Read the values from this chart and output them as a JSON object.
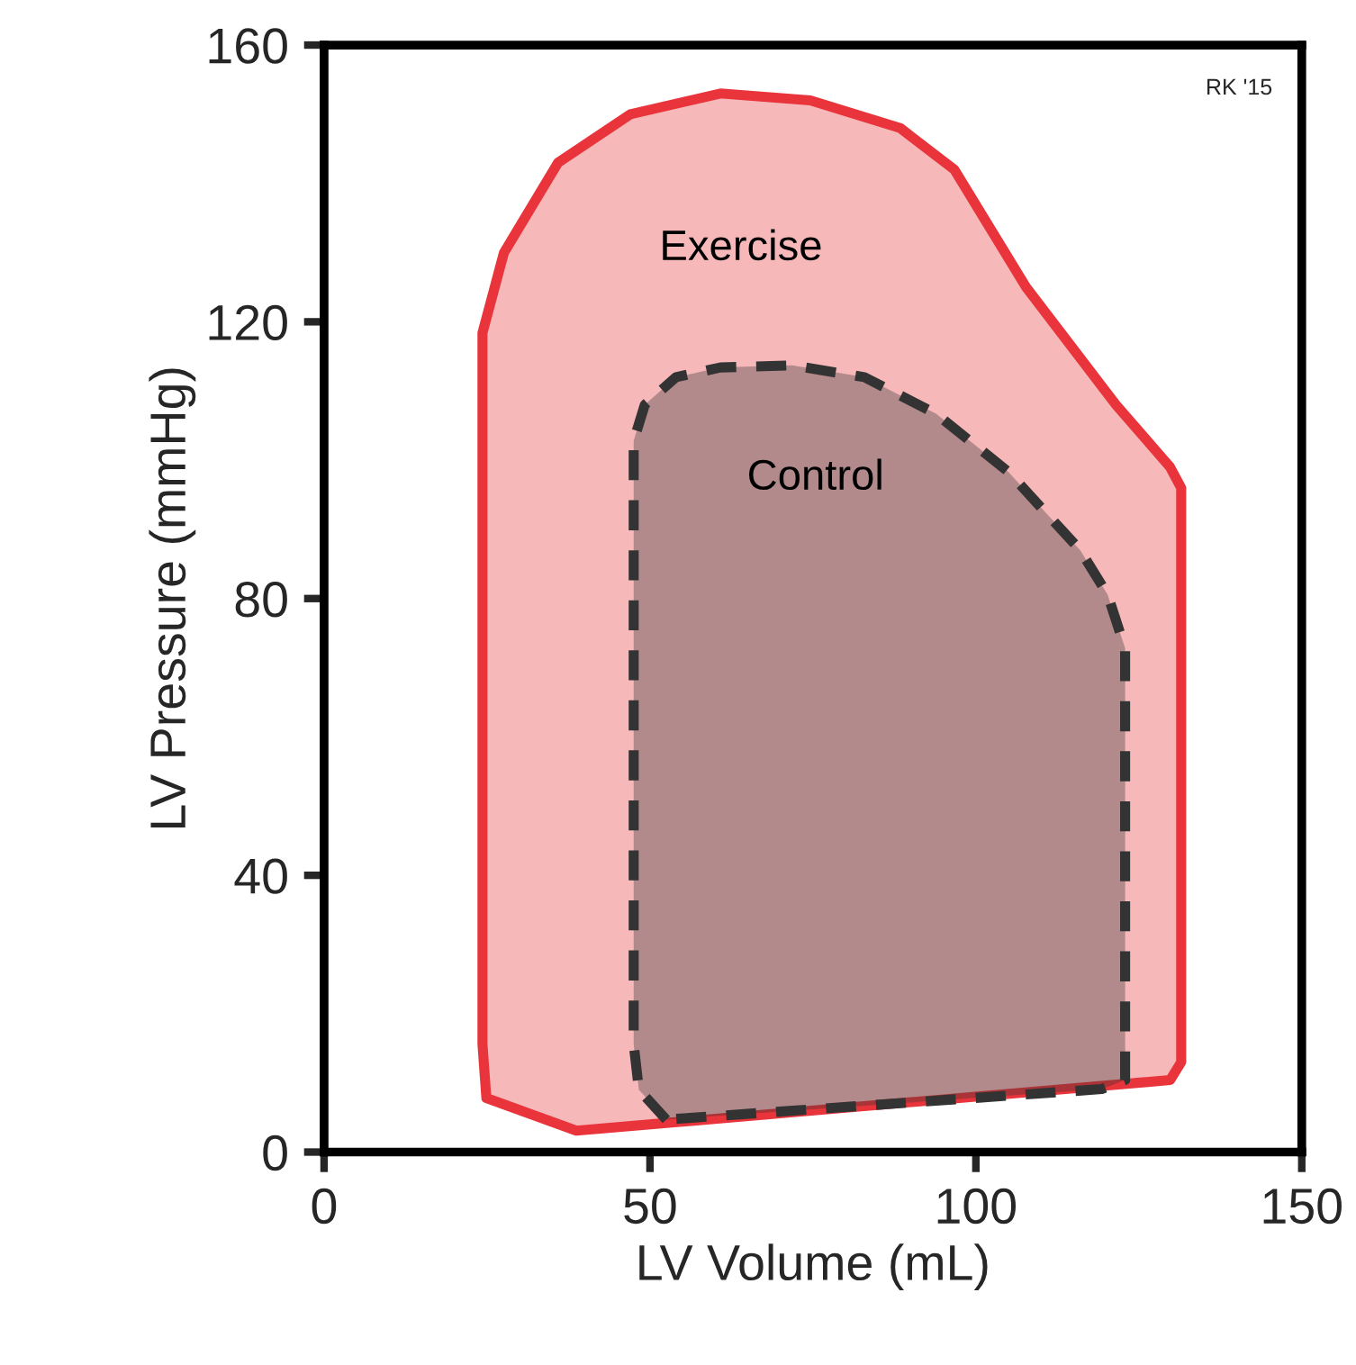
{
  "chart_data": {
    "type": "area",
    "xlabel": "LV Volume (mL)",
    "ylabel": "LV Pressure (mmHg)",
    "xlim": [
      0,
      150
    ],
    "xticks": [
      0,
      50,
      100,
      150
    ],
    "ylim": [
      0,
      160
    ],
    "yticks": [
      0,
      40,
      80,
      120,
      160
    ],
    "grid": false,
    "legend": false,
    "annotations": [
      "RK '15"
    ],
    "series": [
      {
        "name": "Exercise",
        "color": "#e8343a",
        "line_style": "solid",
        "x": [
          38.7,
          24.9,
          24.3,
          24.3,
          27.6,
          35.9,
          47,
          60.8,
          74.6,
          88.4,
          96.7,
          107.7,
          121.5,
          129.8,
          131.5,
          131.5,
          129.8
        ],
        "values": [
          3.1,
          7.8,
          15.6,
          118.4,
          130,
          143,
          150,
          153,
          152,
          148,
          142,
          125,
          108,
          99,
          96,
          13,
          10.4
        ]
      },
      {
        "name": "Control",
        "color": "#333333",
        "line_style": "dashed",
        "x": [
          52.5,
          48.3,
          47.5,
          47.5,
          49.2,
          54,
          60.8,
          71.8,
          82.9,
          93.9,
          105,
          116,
          120.2,
          122.9,
          122.9,
          119.3
        ],
        "values": [
          4.7,
          9,
          15.6,
          102.8,
          108,
          112,
          113.4,
          113.7,
          112,
          106.7,
          98.3,
          87,
          80.6,
          72.8,
          10.4,
          9.1
        ]
      }
    ]
  }
}
